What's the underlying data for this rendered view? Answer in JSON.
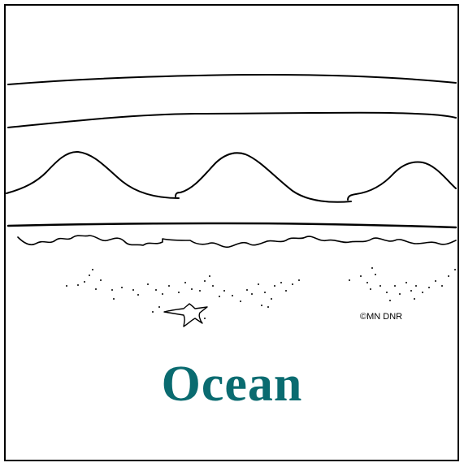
{
  "page": {
    "title": "Ocean",
    "credit": "©MN DNR"
  },
  "colors": {
    "title": "#0a6b70",
    "line": "#000000",
    "background": "#ffffff"
  },
  "icons": {
    "starfish": "starfish-icon"
  }
}
